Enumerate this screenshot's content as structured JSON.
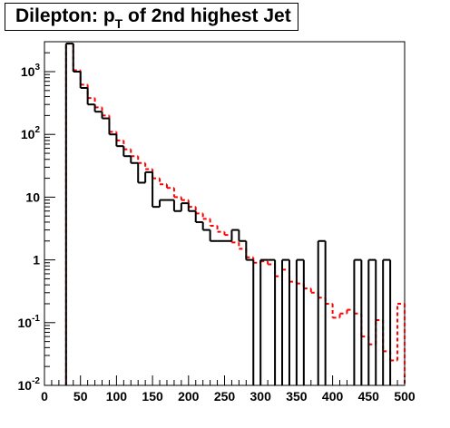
{
  "title": {
    "prefix": "Dilepton: p",
    "subscript": "T",
    "suffix": " of 2nd highest Jet"
  },
  "chart_data": {
    "type": "step",
    "title": "Dilepton: p_T of 2nd highest Jet",
    "xlabel": "",
    "ylabel": "",
    "xlim": [
      0,
      500
    ],
    "ylim": [
      0.01,
      3000
    ],
    "y_scale": "log",
    "grid": false,
    "legend": "none",
    "bin_width": 10,
    "x_ticks": [
      "0",
      "50",
      "100",
      "150",
      "200",
      "250",
      "300",
      "350",
      "400",
      "450",
      "500"
    ],
    "y_ticks": [
      {
        "value": 0.01,
        "base": "10",
        "exp": "-2"
      },
      {
        "value": 0.1,
        "base": "10",
        "exp": "-1"
      },
      {
        "value": 1,
        "base": "1",
        "exp": ""
      },
      {
        "value": 10,
        "base": "10",
        "exp": ""
      },
      {
        "value": 100,
        "base": "10",
        "exp": "2"
      },
      {
        "value": 1000,
        "base": "10",
        "exp": "3"
      }
    ],
    "x": [
      0,
      10,
      20,
      30,
      40,
      50,
      60,
      70,
      80,
      90,
      100,
      110,
      120,
      130,
      140,
      150,
      160,
      170,
      180,
      190,
      200,
      210,
      220,
      230,
      240,
      250,
      260,
      270,
      280,
      290,
      300,
      310,
      320,
      330,
      340,
      350,
      360,
      370,
      380,
      390,
      400,
      410,
      420,
      430,
      440,
      450,
      460,
      470,
      480,
      490
    ],
    "series": [
      {
        "color": "#000000",
        "dash": "solid",
        "values": [
          0,
          0,
          0,
          2800,
          1000,
          550,
          300,
          230,
          180,
          100,
          65,
          45,
          35,
          17,
          25,
          7,
          9,
          9,
          6,
          8,
          6,
          4,
          3,
          2,
          2,
          2,
          3,
          2,
          1,
          0,
          1,
          1,
          0,
          1,
          0,
          1,
          0,
          0,
          2,
          0,
          0,
          0,
          0,
          1,
          0,
          1,
          0,
          1,
          0,
          0
        ]
      },
      {
        "color": "#ff0000",
        "dash": "dashed",
        "values": [
          0,
          0,
          0,
          2800,
          1050,
          620,
          380,
          270,
          200,
          110,
          80,
          58,
          45,
          35,
          28,
          20,
          16,
          14,
          10,
          9,
          7,
          5.5,
          4.5,
          3.5,
          2.8,
          2.5,
          1.9,
          1.5,
          1.1,
          0.9,
          0.95,
          0.85,
          0.55,
          0.7,
          0.45,
          0.42,
          0.35,
          0.3,
          0.25,
          0.2,
          0.12,
          0.14,
          0.16,
          0.14,
          0.06,
          0.045,
          0.11,
          0.035,
          0.025,
          0.2
        ]
      }
    ]
  }
}
